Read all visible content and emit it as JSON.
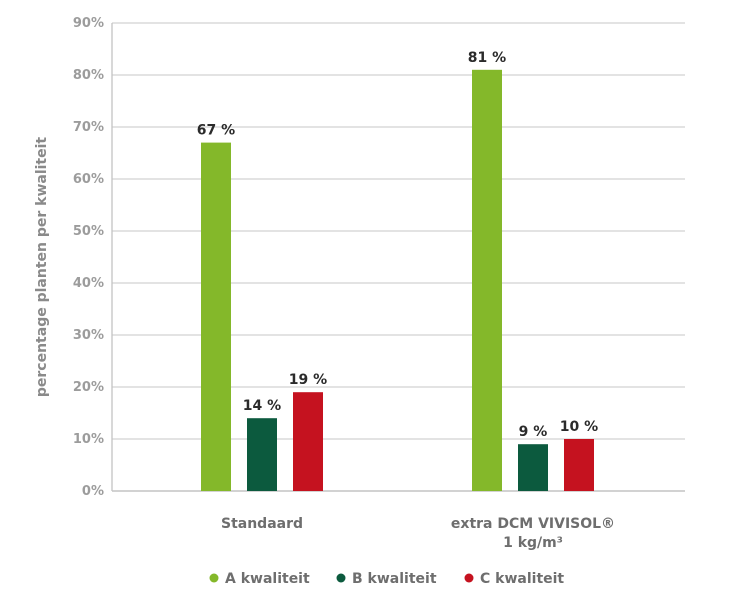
{
  "chart_data": {
    "type": "bar",
    "ylabel": "percentage planten per kwaliteit",
    "ylim": [
      0,
      90
    ],
    "yticks": [
      0,
      10,
      20,
      30,
      40,
      50,
      60,
      70,
      80,
      90
    ],
    "ytick_labels": [
      "0%",
      "10%",
      "20%",
      "30%",
      "40%",
      "50%",
      "60%",
      "70%",
      "80%",
      "90%"
    ],
    "grid": true,
    "legend_position": "bottom",
    "categories": [
      {
        "lines": [
          "Standaard"
        ]
      },
      {
        "lines": [
          "extra DCM VIVISOL®",
          "1 kg/m³"
        ]
      }
    ],
    "series": [
      {
        "name": "A kwaliteit",
        "color": "#84b82a",
        "values": [
          67,
          81
        ],
        "labels": [
          "67 %",
          "81 %"
        ]
      },
      {
        "name": "B kwaliteit",
        "color": "#0c5a3e",
        "values": [
          14,
          9
        ],
        "labels": [
          "14 %",
          "9 %"
        ]
      },
      {
        "name": "C kwaliteit",
        "color": "#c5121f",
        "values": [
          19,
          10
        ],
        "labels": [
          "19 %",
          "10 %"
        ]
      }
    ]
  }
}
